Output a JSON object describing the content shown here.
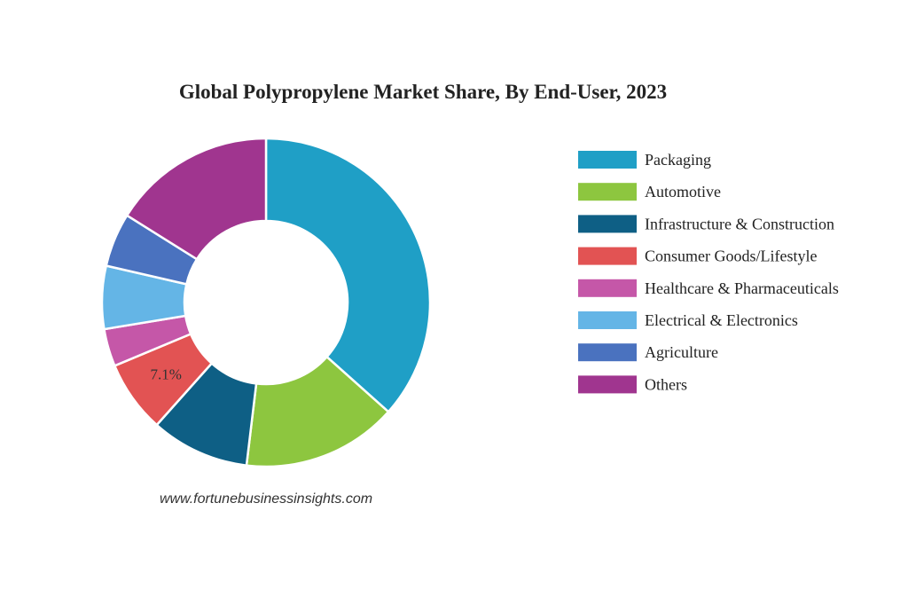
{
  "chart_data": {
    "type": "donut",
    "title": "Global Polypropylene Market Share, By End-User, 2023",
    "categories": [
      "Packaging",
      "Automotive",
      "Infrastructure & Construction",
      "Consumer Goods/Lifestyle",
      "Healthcare & Pharmaceuticals",
      "Electrical & Electronics",
      "Agriculture",
      "Others"
    ],
    "values": [
      36.6,
      15.3,
      9.7,
      7.1,
      3.7,
      6.2,
      5.3,
      16.1
    ],
    "value_labels": [
      null,
      null,
      null,
      "7.1%",
      null,
      null,
      null,
      null
    ],
    "colors": [
      "#1f9fc6",
      "#8dc63f",
      "#0e5f85",
      "#e25353",
      "#c557a8",
      "#64b5e6",
      "#4a72bf",
      "#a0358f"
    ],
    "legend": "right",
    "source": "www.fortunebusinessinsights.com"
  }
}
